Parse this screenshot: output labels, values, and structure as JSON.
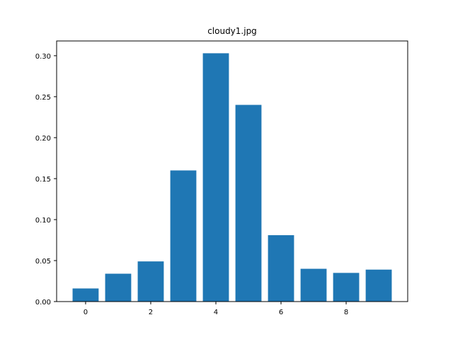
{
  "chart_data": {
    "type": "bar",
    "title": "cloudy1.jpg",
    "xlabel": "",
    "ylabel": "",
    "x": [
      0,
      1,
      2,
      3,
      4,
      5,
      6,
      7,
      8,
      9
    ],
    "values": [
      0.016,
      0.034,
      0.049,
      0.16,
      0.303,
      0.24,
      0.081,
      0.04,
      0.035,
      0.039
    ],
    "xlim": [
      -0.89,
      9.89
    ],
    "ylim": [
      0,
      0.318
    ],
    "xticks": [
      0,
      2,
      4,
      6,
      8
    ],
    "xtick_labels": [
      "0",
      "2",
      "4",
      "6",
      "8"
    ],
    "yticks": [
      0.0,
      0.05,
      0.1,
      0.15,
      0.2,
      0.25,
      0.3
    ],
    "ytick_labels": [
      "0.00",
      "0.05",
      "0.10",
      "0.15",
      "0.20",
      "0.25",
      "0.30"
    ],
    "bar_color": "#1f77b4",
    "grid": false,
    "legend": "none"
  }
}
